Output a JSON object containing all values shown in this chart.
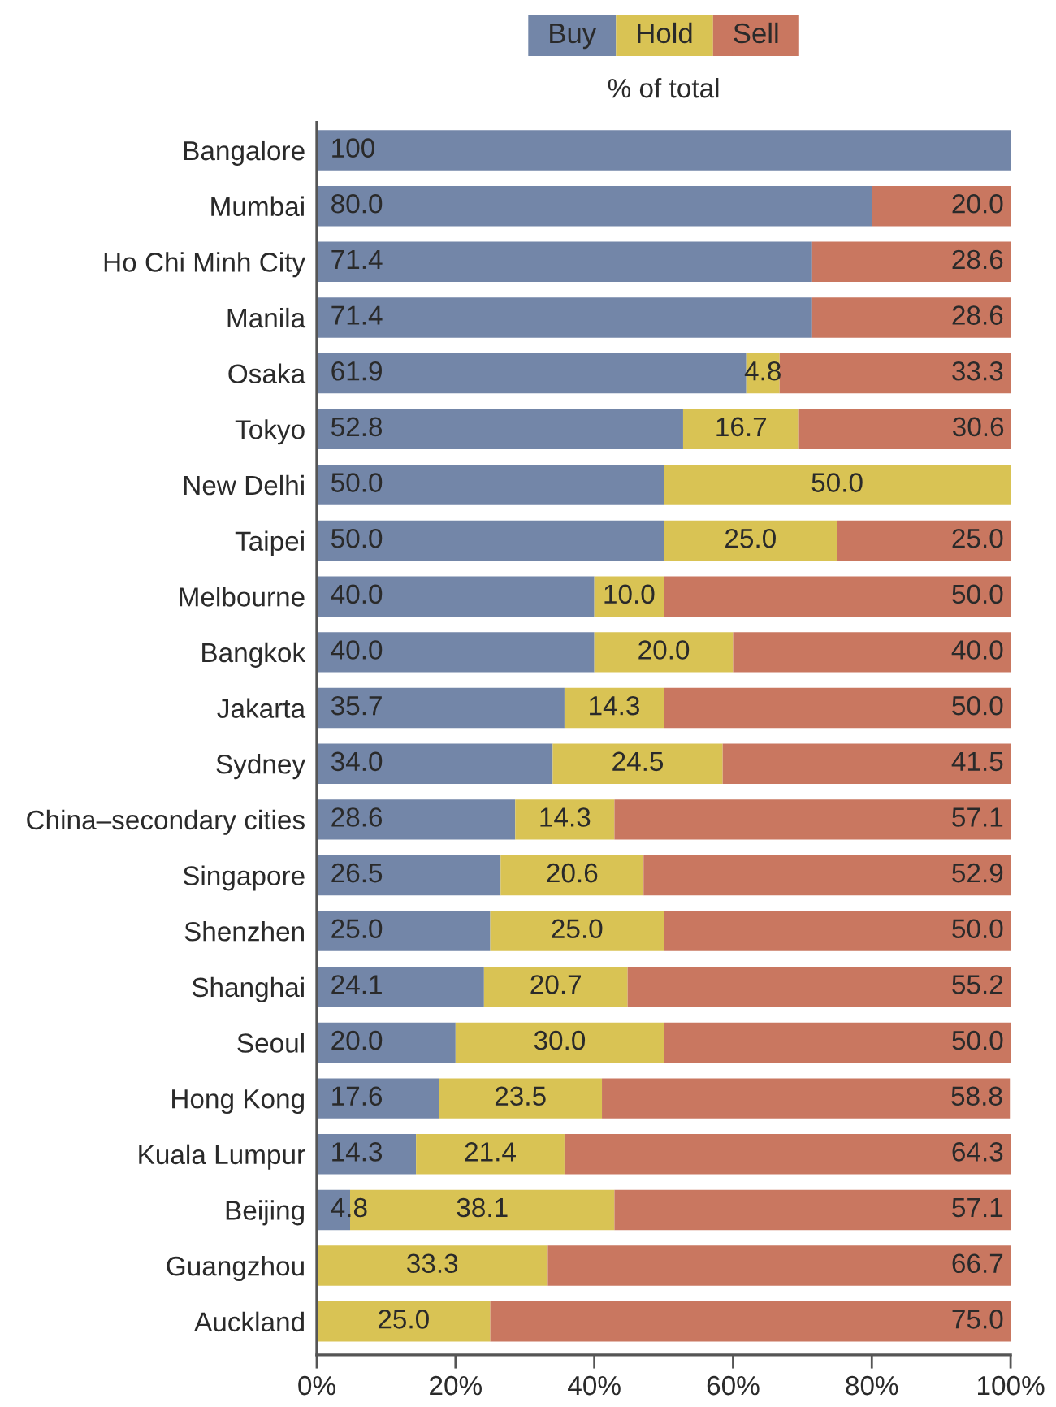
{
  "chart_data": {
    "type": "bar",
    "orientation": "horizontal",
    "stacked": true,
    "title": "% of total",
    "legend": "top",
    "categories": [
      "Bangalore",
      "Mumbai",
      "Ho Chi Minh City",
      "Manila",
      "Osaka",
      "Tokyo",
      "New Delhi",
      "Taipei",
      "Melbourne",
      "Bangkok",
      "Jakarta",
      "Sydney",
      "China–secondary cities",
      "Singapore",
      "Shenzhen",
      "Shanghai",
      "Seoul",
      "Hong Kong",
      "Kuala Lumpur",
      "Beijing",
      "Guangzhou",
      "Auckland"
    ],
    "series": [
      {
        "name": "Buy",
        "color": "#7386a8",
        "values": [
          100,
          80.0,
          71.4,
          71.4,
          61.9,
          52.8,
          50.0,
          50.0,
          40.0,
          40.0,
          35.7,
          34.0,
          28.6,
          26.5,
          25.0,
          24.1,
          20.0,
          17.6,
          14.3,
          4.8,
          0,
          0
        ],
        "value_labels": [
          "100",
          "80.0",
          "71.4",
          "71.4",
          "61.9",
          "52.8",
          "50.0",
          "50.0",
          "40.0",
          "40.0",
          "35.7",
          "34.0",
          "28.6",
          "26.5",
          "25.0",
          "24.1",
          "20.0",
          "17.6",
          "14.3",
          "4.8",
          null,
          null
        ]
      },
      {
        "name": "Hold",
        "color": "#d9c354",
        "values": [
          0,
          0,
          0,
          0,
          4.8,
          16.7,
          50.0,
          25.0,
          10.0,
          20.0,
          14.3,
          24.5,
          14.3,
          20.6,
          25.0,
          20.7,
          30.0,
          23.5,
          21.4,
          38.1,
          33.3,
          25.0
        ],
        "value_labels": [
          null,
          null,
          null,
          null,
          "4.8",
          "16.7",
          "50.0",
          "25.0",
          "10.0",
          "20.0",
          "14.3",
          "24.5",
          "14.3",
          "20.6",
          "25.0",
          "20.7",
          "30.0",
          "23.5",
          "21.4",
          "38.1",
          "33.3",
          "25.0"
        ]
      },
      {
        "name": "Sell",
        "color": "#c97760",
        "values": [
          0,
          20.0,
          28.6,
          28.6,
          33.3,
          30.6,
          0,
          25.0,
          50.0,
          40.0,
          50.0,
          41.5,
          57.1,
          52.9,
          50.0,
          55.2,
          50.0,
          58.8,
          64.3,
          57.1,
          66.7,
          75.0
        ],
        "value_labels": [
          null,
          "20.0",
          "28.6",
          "28.6",
          "33.3",
          "30.6",
          null,
          "25.0",
          "50.0",
          "40.0",
          "50.0",
          "41.5",
          "57.1",
          "52.9",
          "50.0",
          "55.2",
          "50.0",
          "58.8",
          "64.3",
          "57.1",
          "66.7",
          "75.0"
        ]
      }
    ],
    "xlim": [
      0,
      100
    ],
    "xticks": [
      {
        "value": 0,
        "label": "0%"
      },
      {
        "value": 20,
        "label": "20%"
      },
      {
        "value": 40,
        "label": "40%"
      },
      {
        "value": 60,
        "label": "60%"
      },
      {
        "value": 80,
        "label": "80%"
      },
      {
        "value": 100,
        "label": "100%"
      }
    ]
  }
}
